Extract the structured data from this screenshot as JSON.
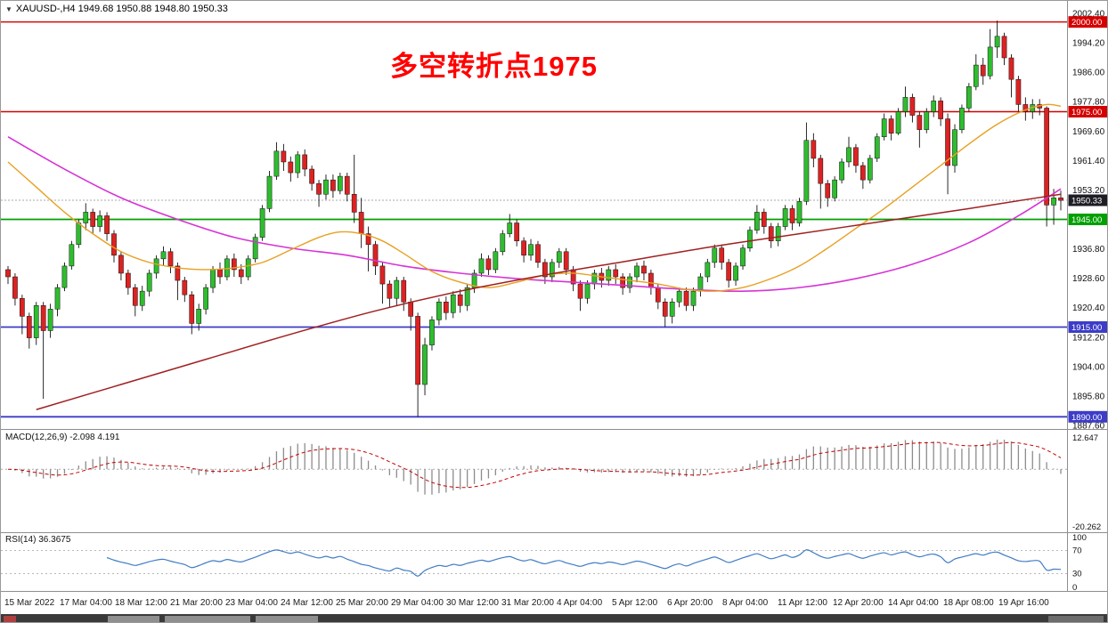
{
  "header": {
    "menu_glyph": "▼",
    "title_line": "XAUUSD-,H4 1949.68 1950.88 1948.80 1950.33"
  },
  "chart_data": {
    "type": "candlestick",
    "symbol": "XAUUSD-",
    "timeframe": "H4",
    "info_values": "1949.68 1950.88 1948.80 1950.33",
    "annotation": {
      "text": "多空转折点1975",
      "color": "#ff0000"
    },
    "y_axis": {
      "top_tick": 2002.4,
      "step": 8.2,
      "ticks": [
        "2002.40",
        "1994.20",
        "1986.00",
        "1977.80",
        "1969.60",
        "1961.40",
        "1953.20",
        "1945.00",
        "1936.80",
        "1928.60",
        "1920.40",
        "1912.20",
        "1904.00",
        "1895.80",
        "1887.60"
      ]
    },
    "x_axis": {
      "labels": [
        "15 Mar 2022",
        "17 Mar 04:00",
        "18 Mar 12:00",
        "21 Mar 20:00",
        "23 Mar 04:00",
        "24 Mar 12:00",
        "25 Mar 20:00",
        "29 Mar 04:00",
        "30 Mar 12:00",
        "31 Mar 20:00",
        "4 Apr 04:00",
        "5 Apr 12:00",
        "6 Apr 20:00",
        "8 Apr 04:00",
        "11 Apr 12:00",
        "12 Apr 20:00",
        "14 Apr 04:00",
        "18 Apr 08:00",
        "19 Apr 16:00"
      ]
    },
    "colors": {
      "up": "#2ebd2e",
      "down": "#dd2222",
      "outline": "#111111"
    },
    "first_open": 1931,
    "candles": [
      [
        1932,
        1927,
        1929
      ],
      [
        1930,
        1921,
        1923
      ],
      [
        1924,
        1913,
        1918
      ],
      [
        1919,
        1909,
        1912
      ],
      [
        1922,
        1910,
        1921
      ],
      [
        1922,
        1895,
        1914
      ],
      [
        1921.5,
        1912,
        1920
      ],
      [
        1927,
        1918,
        1926
      ],
      [
        1933,
        1925,
        1932
      ],
      [
        1939,
        1931,
        1938
      ],
      [
        1945,
        1937,
        1944
      ],
      [
        1949.5,
        1942,
        1947
      ],
      [
        1948,
        1941,
        1943
      ],
      [
        1947.5,
        1941.5,
        1946
      ],
      [
        1947,
        1939,
        1941
      ],
      [
        1942,
        1933,
        1935
      ],
      [
        1936,
        1928,
        1930
      ],
      [
        1931,
        1924,
        1926
      ],
      [
        1927,
        1918,
        1921
      ],
      [
        1926.5,
        1919.5,
        1925
      ],
      [
        1931,
        1923.5,
        1930
      ],
      [
        1935,
        1928.5,
        1934
      ],
      [
        1937.5,
        1932,
        1936
      ],
      [
        1937,
        1930,
        1932
      ],
      [
        1933,
        1922.5,
        1928
      ],
      [
        1929,
        1922,
        1924
      ],
      [
        1925,
        1913,
        1916
      ],
      [
        1921.5,
        1914,
        1920
      ],
      [
        1927,
        1918.5,
        1926
      ],
      [
        1932,
        1924.5,
        1931
      ],
      [
        1933,
        1927,
        1929
      ],
      [
        1935,
        1928,
        1934
      ],
      [
        1935.5,
        1929,
        1931
      ],
      [
        1932.5,
        1927,
        1929
      ],
      [
        1935,
        1928,
        1934
      ],
      [
        1941,
        1933,
        1940
      ],
      [
        1949,
        1939,
        1948
      ],
      [
        1958.5,
        1947,
        1957
      ],
      [
        1966.5,
        1956,
        1964
      ],
      [
        1966,
        1958.5,
        1961
      ],
      [
        1962.5,
        1955.5,
        1958
      ],
      [
        1964,
        1956.5,
        1963
      ],
      [
        1964.5,
        1957,
        1959
      ],
      [
        1960,
        1953,
        1955
      ],
      [
        1956,
        1948.5,
        1952
      ],
      [
        1957.5,
        1950.5,
        1956
      ],
      [
        1957.5,
        1951,
        1953
      ],
      [
        1958,
        1952,
        1957
      ],
      [
        1958,
        1950,
        1952
      ],
      [
        1963,
        1944,
        1947
      ],
      [
        1951,
        1937,
        1941
      ],
      [
        1943,
        1930.5,
        1938
      ],
      [
        1939,
        1929.5,
        1932
      ],
      [
        1933,
        1921.5,
        1927
      ],
      [
        1928,
        1920.5,
        1923
      ],
      [
        1929,
        1921,
        1928
      ],
      [
        1929,
        1919.5,
        1922
      ],
      [
        1923,
        1914,
        1918
      ],
      [
        1919,
        1890,
        1899
      ],
      [
        1912,
        1896,
        1910
      ],
      [
        1918,
        1908.5,
        1917
      ],
      [
        1923,
        1915.5,
        1922
      ],
      [
        1923.5,
        1917,
        1919
      ],
      [
        1925,
        1917.5,
        1924
      ],
      [
        1925.5,
        1919,
        1921
      ],
      [
        1927,
        1919.5,
        1926
      ],
      [
        1931,
        1924.5,
        1930
      ],
      [
        1935.5,
        1929,
        1934
      ],
      [
        1935,
        1929.5,
        1931
      ],
      [
        1937,
        1930,
        1936
      ],
      [
        1942,
        1935,
        1941
      ],
      [
        1946.5,
        1940,
        1944
      ],
      [
        1945,
        1937.5,
        1939
      ],
      [
        1940,
        1933,
        1935
      ],
      [
        1939.5,
        1933.5,
        1938
      ],
      [
        1939,
        1931.5,
        1933
      ],
      [
        1934,
        1927,
        1929
      ],
      [
        1934,
        1927.5,
        1933
      ],
      [
        1937,
        1931.5,
        1936
      ],
      [
        1937,
        1929.5,
        1931
      ],
      [
        1932,
        1925,
        1927
      ],
      [
        1928,
        1919.5,
        1923
      ],
      [
        1928,
        1921.5,
        1927
      ],
      [
        1931,
        1925.5,
        1930
      ],
      [
        1931.5,
        1926,
        1928
      ],
      [
        1932,
        1926.5,
        1931
      ],
      [
        1932.5,
        1927,
        1929
      ],
      [
        1930,
        1924,
        1926
      ],
      [
        1930,
        1924.5,
        1929
      ],
      [
        1933,
        1927.5,
        1932
      ],
      [
        1933.5,
        1928,
        1930
      ],
      [
        1931,
        1924,
        1926
      ],
      [
        1927,
        1920,
        1922
      ],
      [
        1923,
        1915,
        1918
      ],
      [
        1923,
        1916,
        1922
      ],
      [
        1926,
        1920.5,
        1925
      ],
      [
        1926,
        1919.5,
        1921
      ],
      [
        1926,
        1919.5,
        1925
      ],
      [
        1930,
        1923.5,
        1929
      ],
      [
        1934,
        1927.5,
        1933
      ],
      [
        1938,
        1931.5,
        1937
      ],
      [
        1938,
        1931,
        1933
      ],
      [
        1934,
        1926,
        1928
      ],
      [
        1933,
        1926.5,
        1932
      ],
      [
        1938,
        1931,
        1937
      ],
      [
        1943,
        1936,
        1942
      ],
      [
        1949,
        1941,
        1947
      ],
      [
        1948,
        1941,
        1943
      ],
      [
        1944,
        1937,
        1939
      ],
      [
        1944,
        1937.5,
        1943
      ],
      [
        1949,
        1942,
        1948
      ],
      [
        1949,
        1942,
        1944
      ],
      [
        1951,
        1943,
        1950
      ],
      [
        1972,
        1949,
        1967
      ],
      [
        1969,
        1959.5,
        1962
      ],
      [
        1963,
        1948,
        1955
      ],
      [
        1956,
        1948.5,
        1951
      ],
      [
        1957,
        1950,
        1956
      ],
      [
        1962,
        1955,
        1961
      ],
      [
        1968,
        1959.5,
        1965
      ],
      [
        1966,
        1958,
        1960
      ],
      [
        1961,
        1953.5,
        1956
      ],
      [
        1963,
        1955,
        1962
      ],
      [
        1969,
        1961,
        1968
      ],
      [
        1974.5,
        1967,
        1973
      ],
      [
        1974,
        1967,
        1969
      ],
      [
        1976,
        1968.5,
        1975
      ],
      [
        1982,
        1973.5,
        1979
      ],
      [
        1980,
        1972,
        1974
      ],
      [
        1975,
        1965,
        1970
      ],
      [
        1976,
        1969,
        1975
      ],
      [
        1979.5,
        1973.5,
        1978
      ],
      [
        1979,
        1971,
        1973
      ],
      [
        1974.5,
        1952,
        1960
      ],
      [
        1971.5,
        1958,
        1970
      ],
      [
        1977,
        1969,
        1976
      ],
      [
        1983,
        1975,
        1982
      ],
      [
        1991,
        1981,
        1988
      ],
      [
        1990,
        1982.5,
        1985
      ],
      [
        1998,
        1984,
        1993
      ],
      [
        2000.4,
        1990,
        1996
      ],
      [
        1997,
        1988,
        1990
      ],
      [
        1991,
        1979,
        1984
      ],
      [
        1985,
        1975,
        1977
      ],
      [
        1979,
        1972.5,
        1975
      ],
      [
        1978.5,
        1973,
        1977
      ],
      [
        1978.5,
        1974,
        1976
      ],
      [
        1976.5,
        1943,
        1949
      ],
      [
        1953.5,
        1943.5,
        1951
      ],
      [
        1953,
        1947.5,
        1950.3
      ]
    ],
    "levels": [
      {
        "price": 2000.0,
        "label": "2000.00",
        "color": "#d40000",
        "width": 1.4
      },
      {
        "price": 1975.0,
        "label": "1975.00",
        "color": "#d40000",
        "width": 1.6
      },
      {
        "price": 1945.0,
        "label": "1945.00",
        "color": "#00a000",
        "width": 1.8
      },
      {
        "price": 1915.0,
        "label": "1915.00",
        "color": "#3c3cc8",
        "width": 1.8
      },
      {
        "price": 1890.0,
        "label": "1890.00",
        "color": "#3c3cc8",
        "width": 1.8
      }
    ],
    "current_price": {
      "price": 1950.33,
      "label": "1950.33",
      "label_bg": "#1d1d26",
      "line_color": "#a8a8a8"
    },
    "moving_averages": [
      {
        "name": "ma-slow-magenta",
        "color": "#d633d6",
        "width": 1.6,
        "points": [
          [
            0,
            1968
          ],
          [
            8,
            1959
          ],
          [
            16,
            1951
          ],
          [
            24,
            1945
          ],
          [
            32,
            1940
          ],
          [
            40,
            1937
          ],
          [
            48,
            1935
          ],
          [
            56,
            1932
          ],
          [
            64,
            1930
          ],
          [
            72,
            1928.5
          ],
          [
            80,
            1927.5
          ],
          [
            88,
            1926.5
          ],
          [
            96,
            1925.5
          ],
          [
            104,
            1925
          ],
          [
            112,
            1926
          ],
          [
            120,
            1928.5
          ],
          [
            128,
            1932.5
          ],
          [
            136,
            1938.5
          ],
          [
            143,
            1946
          ],
          [
            149,
            1953.5
          ]
        ]
      },
      {
        "name": "ma-mid-orange",
        "color": "#e8a020",
        "width": 1.4,
        "points": [
          [
            0,
            1961
          ],
          [
            4,
            1954
          ],
          [
            8,
            1947
          ],
          [
            12,
            1941
          ],
          [
            16,
            1936
          ],
          [
            20,
            1933
          ],
          [
            24,
            1931.5
          ],
          [
            28,
            1931
          ],
          [
            32,
            1931.5
          ],
          [
            36,
            1933
          ],
          [
            40,
            1936.5
          ],
          [
            44,
            1940
          ],
          [
            47,
            1941.5
          ],
          [
            50,
            1941
          ],
          [
            53,
            1939
          ],
          [
            56,
            1935.5
          ],
          [
            60,
            1930.5
          ],
          [
            64,
            1927.5
          ],
          [
            68,
            1926
          ],
          [
            72,
            1927.5
          ],
          [
            76,
            1929.5
          ],
          [
            80,
            1930
          ],
          [
            84,
            1929
          ],
          [
            88,
            1928
          ],
          [
            92,
            1927
          ],
          [
            96,
            1925.5
          ],
          [
            100,
            1925
          ],
          [
            104,
            1926
          ],
          [
            108,
            1928.5
          ],
          [
            112,
            1932
          ],
          [
            116,
            1937
          ],
          [
            120,
            1942.5
          ],
          [
            124,
            1948
          ],
          [
            128,
            1954
          ],
          [
            132,
            1960
          ],
          [
            136,
            1966
          ],
          [
            140,
            1971.5
          ],
          [
            144,
            1975.5
          ],
          [
            147,
            1977
          ],
          [
            149,
            1976.5
          ]
        ]
      },
      {
        "name": "ma-long-darkred",
        "color": "#a02020",
        "width": 1.5,
        "points": [
          [
            4,
            1892
          ],
          [
            16,
            1899
          ],
          [
            28,
            1906
          ],
          [
            40,
            1913
          ],
          [
            52,
            1919.5
          ],
          [
            64,
            1925
          ],
          [
            76,
            1929.5
          ],
          [
            88,
            1933.5
          ],
          [
            100,
            1937.5
          ],
          [
            112,
            1941
          ],
          [
            124,
            1944.5
          ],
          [
            136,
            1948
          ],
          [
            144,
            1950.5
          ],
          [
            149,
            1952
          ]
        ]
      }
    ],
    "macd": {
      "label": "MACD(12,26,9) -2.098 4.191",
      "params": [
        12,
        26,
        9
      ],
      "last_main": -2.098,
      "last_signal": 4.191,
      "scale_max": 12.647,
      "scale_min": -20.262,
      "axis_labels": [
        "12.647",
        "-20.262"
      ],
      "histogram_color": "#8c8c8c",
      "signal_color": "#c40000"
    },
    "rsi": {
      "label": "RSI(14) 36.3675",
      "period": 14,
      "last": 36.3675,
      "levels": [
        70,
        30
      ],
      "axis_labels": [
        "100",
        "70",
        "30",
        "0"
      ],
      "line_color": "#3f7cc4"
    }
  }
}
